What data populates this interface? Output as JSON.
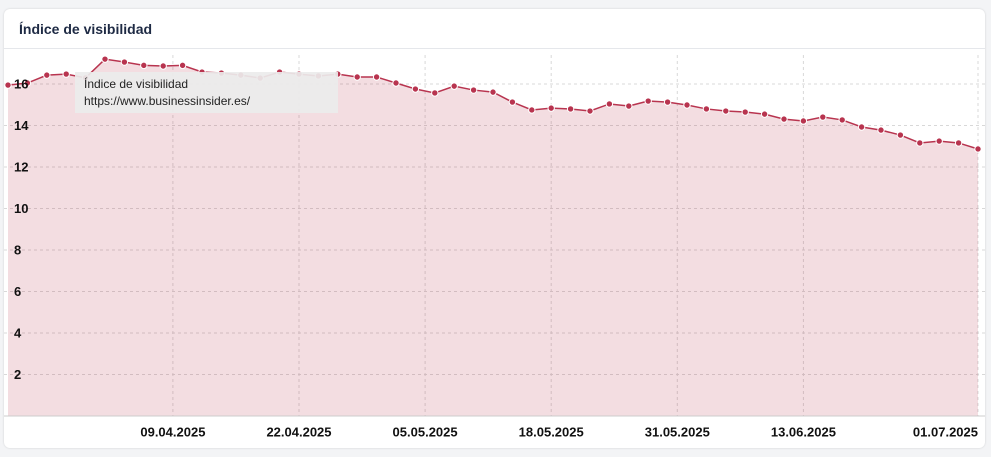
{
  "header": {
    "title": "Índice de visibilidad"
  },
  "chart_data": {
    "type": "area",
    "x": [
      "23.03.2025",
      "25.03.2025",
      "27.03.2025",
      "29.03.2025",
      "31.03.2025",
      "02.04.2025",
      "04.04.2025",
      "06.04.2025",
      "08.04.2025",
      "10.04.2025",
      "12.04.2025",
      "14.04.2025",
      "16.04.2025",
      "18.04.2025",
      "20.04.2025",
      "22.04.2025",
      "24.04.2025",
      "26.04.2025",
      "28.04.2025",
      "30.04.2025",
      "02.05.2025",
      "04.05.2025",
      "06.05.2025",
      "08.05.2025",
      "10.05.2025",
      "12.05.2025",
      "14.05.2025",
      "16.05.2025",
      "18.05.2025",
      "20.05.2025",
      "22.05.2025",
      "24.05.2025",
      "26.05.2025",
      "28.05.2025",
      "30.05.2025",
      "01.06.2025",
      "03.06.2025",
      "05.06.2025",
      "07.06.2025",
      "09.06.2025",
      "11.06.2025",
      "13.06.2025",
      "15.06.2025",
      "17.06.2025",
      "19.06.2025",
      "21.06.2025",
      "23.06.2025",
      "25.06.2025",
      "27.06.2025",
      "29.06.2025",
      "01.07.2025"
    ],
    "series": [
      {
        "name": "https://www.businessinsider.es/",
        "color": "#b8344f",
        "values": [
          15.95,
          16.05,
          16.43,
          16.48,
          16.3,
          17.2,
          17.06,
          16.9,
          16.87,
          16.9,
          16.58,
          16.53,
          16.43,
          16.29,
          16.58,
          16.48,
          16.39,
          16.48,
          16.34,
          16.34,
          16.05,
          15.76,
          15.57,
          15.9,
          15.71,
          15.61,
          15.13,
          14.75,
          14.84,
          14.8,
          14.7,
          15.04,
          14.94,
          15.18,
          15.13,
          14.99,
          14.8,
          14.7,
          14.65,
          14.55,
          14.31,
          14.22,
          14.41,
          14.27,
          13.93,
          13.78,
          13.54,
          13.16,
          13.25,
          13.16,
          12.87
        ]
      }
    ],
    "xlim": [
      "23.03.2025",
      "01.07.2025"
    ],
    "xticks": [
      "09.04.2025",
      "22.04.2025",
      "05.05.2025",
      "18.05.2025",
      "31.05.2025",
      "13.06.2025",
      "01.07.2025"
    ],
    "ylim": [
      0,
      17.4
    ],
    "yticks": [
      2,
      4,
      6,
      8,
      10,
      12,
      14,
      16
    ],
    "grid": true,
    "tooltip": {
      "title": "Índice de visibilidad",
      "url": "https://www.businessinsider.es/"
    }
  }
}
